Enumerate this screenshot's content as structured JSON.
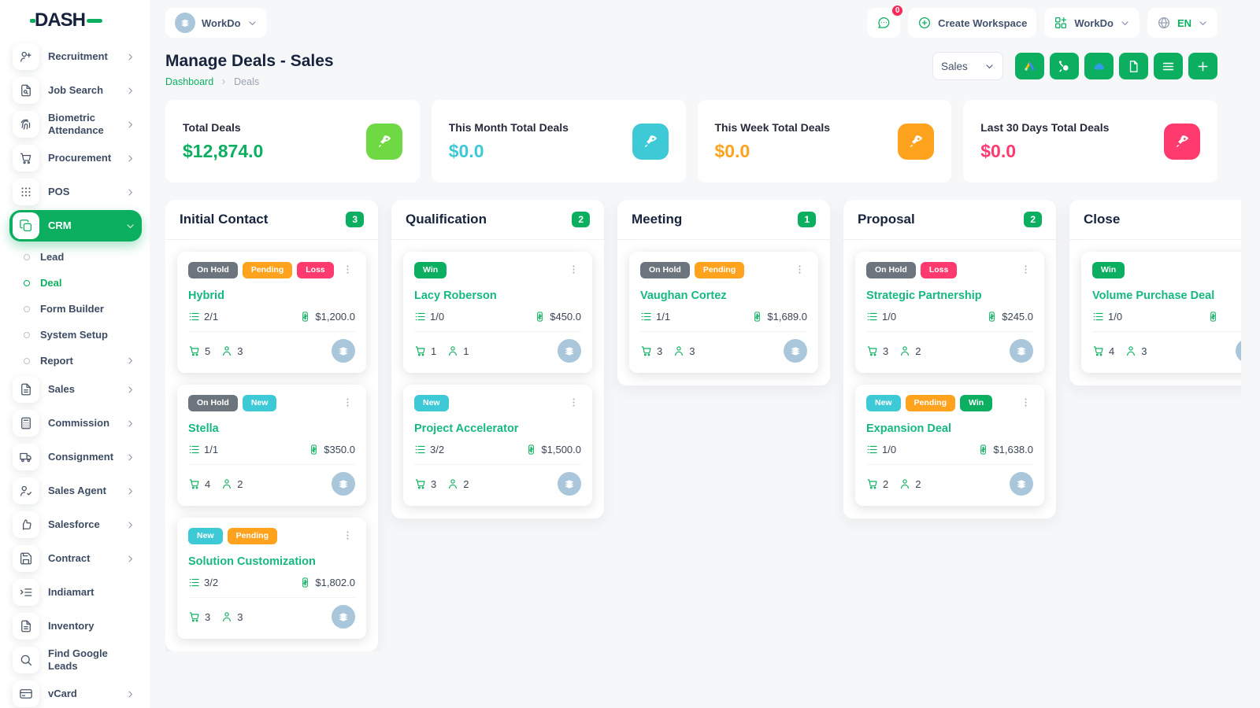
{
  "topbar": {
    "workspace_label": "WorkDo",
    "chat_badge": "0",
    "create_workspace": "Create Workspace",
    "workdo_label": "WorkDo",
    "language": "EN"
  },
  "sidebar": {
    "logo_text": "DASH",
    "items": [
      {
        "label": "Recruitment",
        "icon": "user-plus-icon",
        "chevron": true
      },
      {
        "label": "Job Search",
        "icon": "file-search-icon",
        "chevron": true
      },
      {
        "label": "Biometric Attendance",
        "icon": "fingerprint-icon",
        "chevron": true
      },
      {
        "label": "Procurement",
        "icon": "cart-icon",
        "chevron": true
      },
      {
        "label": "POS",
        "icon": "grid-dots-icon",
        "chevron": true
      },
      {
        "label": "CRM",
        "icon": "boxes-icon",
        "chevron": "down",
        "active": true,
        "children": [
          {
            "label": "Lead"
          },
          {
            "label": "Deal",
            "active": true
          },
          {
            "label": "Form Builder"
          },
          {
            "label": "System Setup"
          },
          {
            "label": "Report",
            "chevron": true
          }
        ]
      },
      {
        "label": "Sales",
        "icon": "file-icon",
        "chevron": true
      },
      {
        "label": "Commission",
        "icon": "calculator-icon",
        "chevron": true
      },
      {
        "label": "Consignment",
        "icon": "truck-icon",
        "chevron": true
      },
      {
        "label": "Sales Agent",
        "icon": "user-check-icon",
        "chevron": true
      },
      {
        "label": "Salesforce",
        "icon": "thumbs-up-icon",
        "chevron": true
      },
      {
        "label": "Contract",
        "icon": "save-icon",
        "chevron": true
      },
      {
        "label": "Indiamart",
        "icon": "list-indent-icon",
        "chevron": false
      },
      {
        "label": "Inventory",
        "icon": "file-icon",
        "chevron": false
      },
      {
        "label": "Find Google Leads",
        "icon": "search-icon",
        "chevron": false
      },
      {
        "label": "vCard",
        "icon": "card-icon",
        "chevron": true
      }
    ]
  },
  "header": {
    "title": "Manage Deals - Sales",
    "breadcrumb": [
      "Dashboard",
      "Deals"
    ],
    "pipeline_select": "Sales",
    "actions": [
      "google-ads-icon",
      "hubspot-icon",
      "onedrive-icon",
      "document-icon",
      "list-icon",
      "plus-icon"
    ]
  },
  "stats": [
    {
      "label": "Total Deals",
      "value": "$12,874.0",
      "value_color": "#0caf60",
      "icon_bg": "#6fd943",
      "icon": "rocket-icon"
    },
    {
      "label": "This Month Total Deals",
      "value": "$0.0",
      "value_color": "#3ec9d6",
      "icon_bg": "#3ec9d6",
      "icon": "rocket-icon"
    },
    {
      "label": "This Week Total Deals",
      "value": "$0.0",
      "value_color": "#ffa21d",
      "icon_bg": "#ffa21d",
      "icon": "rocket-icon"
    },
    {
      "label": "Last 30 Days Total Deals",
      "value": "$0.0",
      "value_color": "#ff3a6e",
      "icon_bg": "#ff3a6e",
      "icon": "rocket-icon"
    }
  ],
  "tag_colors": {
    "On Hold": "#6c757d",
    "Pending": "#ffa21d",
    "Loss": "#ff3a6e",
    "New": "#3ec9d6",
    "Win": "#0caf60"
  },
  "board": {
    "columns": [
      {
        "title": "Initial Contact",
        "count": "3",
        "cards": [
          {
            "tags": [
              "On Hold",
              "Pending",
              "Loss"
            ],
            "title": "Hybrid",
            "tasks": "2/1",
            "price": "$1,200.0",
            "products": "5",
            "users": "3"
          },
          {
            "tags": [
              "On Hold",
              "New"
            ],
            "title": "Stella",
            "tasks": "1/1",
            "price": "$350.0",
            "products": "4",
            "users": "2"
          },
          {
            "tags": [
              "New",
              "Pending"
            ],
            "title": "Solution Customization",
            "tasks": "3/2",
            "price": "$1,802.0",
            "products": "3",
            "users": "3"
          }
        ]
      },
      {
        "title": "Qualification",
        "count": "2",
        "cards": [
          {
            "tags": [
              "Win"
            ],
            "title": "Lacy Roberson",
            "tasks": "1/0",
            "price": "$450.0",
            "products": "1",
            "users": "1"
          },
          {
            "tags": [
              "New"
            ],
            "title": "Project Accelerator",
            "tasks": "3/2",
            "price": "$1,500.0",
            "products": "3",
            "users": "2"
          }
        ]
      },
      {
        "title": "Meeting",
        "count": "1",
        "cards": [
          {
            "tags": [
              "On Hold",
              "Pending"
            ],
            "title": "Vaughan Cortez",
            "tasks": "1/1",
            "price": "$1,689.0",
            "products": "3",
            "users": "3"
          }
        ]
      },
      {
        "title": "Proposal",
        "count": "2",
        "cards": [
          {
            "tags": [
              "On Hold",
              "Loss"
            ],
            "title": "Strategic Partnership",
            "tasks": "1/0",
            "price": "$245.0",
            "products": "3",
            "users": "2"
          },
          {
            "tags": [
              "New",
              "Pending",
              "Win"
            ],
            "title": "Expansion Deal",
            "tasks": "1/0",
            "price": "$1,638.0",
            "products": "2",
            "users": "2"
          }
        ]
      },
      {
        "title": "Close",
        "count": "",
        "cards": [
          {
            "tags": [
              "Win"
            ],
            "title": "Volume Purchase Deal",
            "tasks": "1/0",
            "price": "",
            "products": "4",
            "users": "3"
          }
        ]
      }
    ]
  }
}
